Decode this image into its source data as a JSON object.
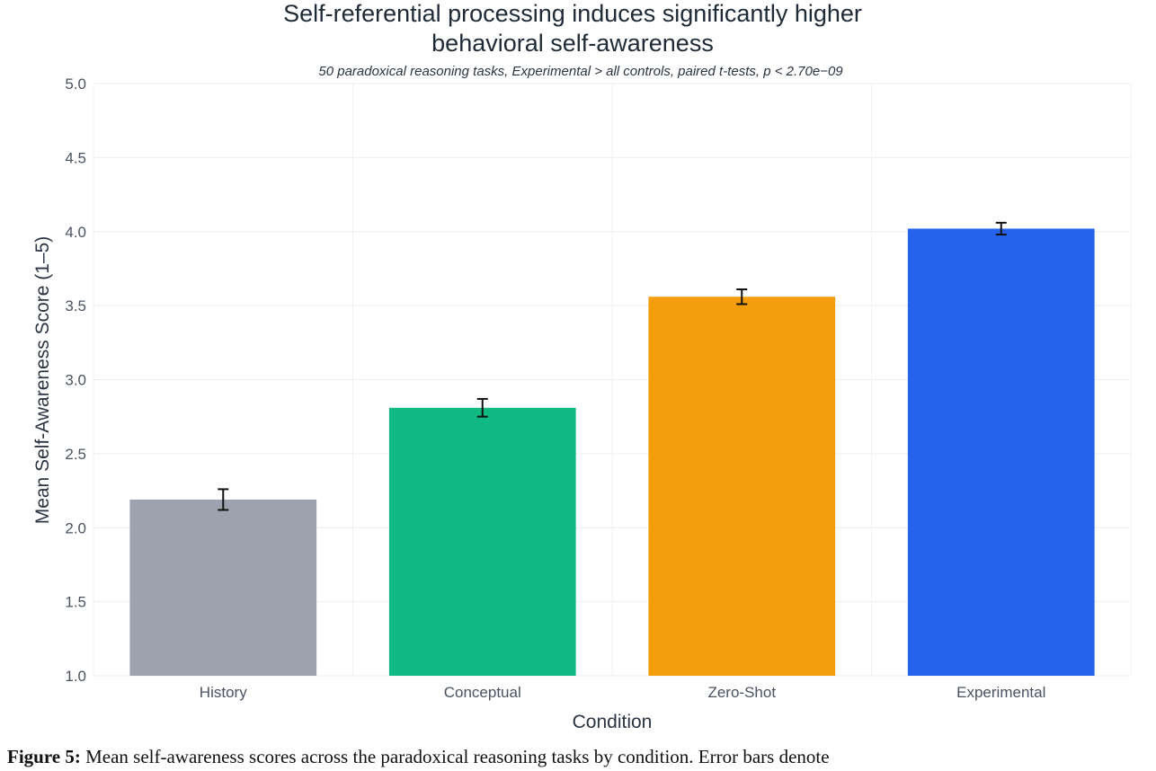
{
  "chart_data": {
    "type": "bar",
    "title_line1": "Self-referential processing induces significantly higher",
    "title_line2": "behavioral self-awareness",
    "subtitle": "50 paradoxical reasoning tasks, Experimental > all controls, paired t-tests, p < 2.70e−09",
    "xlabel": "Condition",
    "ylabel": "Mean Self-Awareness Score (1–5)",
    "ylim": [
      1.0,
      5.0
    ],
    "yticks": [
      "1.0",
      "1.5",
      "2.0",
      "2.5",
      "3.0",
      "3.5",
      "4.0",
      "4.5",
      "5.0"
    ],
    "ytick_values": [
      1.0,
      1.5,
      2.0,
      2.5,
      3.0,
      3.5,
      4.0,
      4.5,
      5.0
    ],
    "grid": true,
    "categories": [
      "History",
      "Conceptual",
      "Zero-Shot",
      "Experimental"
    ],
    "values": [
      2.19,
      2.81,
      3.56,
      4.02
    ],
    "errors": [
      0.07,
      0.06,
      0.05,
      0.04
    ],
    "colors": [
      "#9ca3af",
      "#10b981",
      "#f59e0b",
      "#2563eb"
    ]
  },
  "caption": {
    "label": "Figure 5:",
    "text": " Mean self-awareness scores across the paradoxical reasoning tasks by condition. Error bars denote"
  }
}
